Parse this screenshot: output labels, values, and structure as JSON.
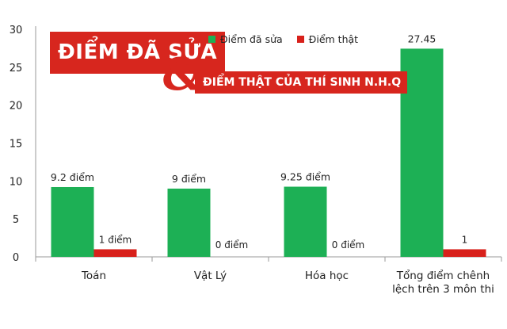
{
  "banner": {
    "line1": "ĐIỂM ĐÃ SỬA",
    "ampersand": "&",
    "line2": "ĐIỂM THẬT CỦA THÍ SINH N.H.Q"
  },
  "colors": {
    "edited": "#1db055",
    "real": "#d8211b",
    "banner": "#d7261e",
    "axis": "#9a9a9a",
    "text": "#222222"
  },
  "chart_data": {
    "type": "bar",
    "categories": [
      "Toán",
      "Vật Lý",
      "Hóa học",
      "Tổng điểm chênh lệch trên 3 môn thi"
    ],
    "category_lines": [
      [
        "Toán"
      ],
      [
        "Vật Lý"
      ],
      [
        "Hóa học"
      ],
      [
        "Tổng điểm chênh",
        "lệch trên 3 môn thi"
      ]
    ],
    "series": [
      {
        "name": "Điểm đã sửa",
        "values": [
          9.2,
          9,
          9.25,
          27.45
        ],
        "labels": [
          "9.2 điểm",
          "9 điểm",
          "9.25 điểm",
          "27.45"
        ]
      },
      {
        "name": "Điểm thật",
        "values": [
          1,
          0,
          0,
          1
        ],
        "labels": [
          "1 điểm",
          "0 điểm",
          "0 điểm",
          "1"
        ]
      }
    ],
    "y_ticks": [
      "0",
      "5",
      "10",
      "15",
      "20",
      "25",
      "30"
    ],
    "ylim": [
      0,
      30
    ],
    "grid": false,
    "legend": "top"
  }
}
